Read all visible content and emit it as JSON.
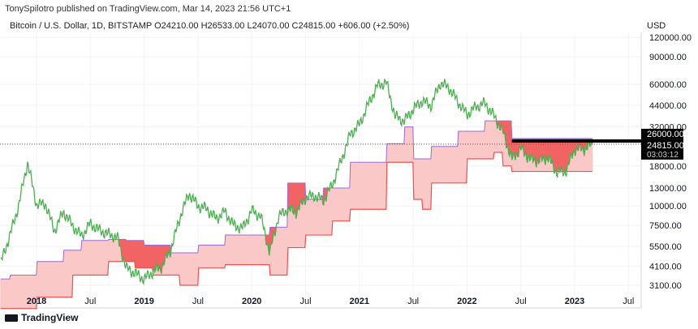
{
  "header": {
    "credit": "TonySpilotro published on TradingView.com, Mar 14, 2023 21:56 UTC+1",
    "legend": "Bitcoin / U.S. Dollar, 1D, BITSTAMP  O24210.00  H26533.00  L24070.00  C24815.00  +606.00 (+2.50%)"
  },
  "footer": {
    "brand": "TradingView"
  },
  "colors": {
    "price": "#4caf50",
    "cloud_upper": "#9c6ad6",
    "cloud_lower": "#f05050",
    "cloud_fill": "#fbc8c8",
    "cloud_dark": "#f26464",
    "resistance": "#000000"
  },
  "chart_data": {
    "type": "line",
    "title": "",
    "yscale": "log",
    "currency": "USD",
    "ylim": [
      2600,
      150000
    ],
    "xlim": [
      "2017-09",
      "2023-09"
    ],
    "y_ticks": [
      "120000.00",
      "90000.00",
      "60000.00",
      "44000.00",
      "32000.00",
      "18000.00",
      "13000.00",
      "10000.00",
      "7500.00",
      "5500.00",
      "4100.00",
      "3100.00"
    ],
    "x_ticks": [
      {
        "label": "2018",
        "date": "2018-01"
      },
      {
        "label": "Jul",
        "date": "2018-07"
      },
      {
        "label": "2019",
        "date": "2019-01"
      },
      {
        "label": "Jul",
        "date": "2019-07"
      },
      {
        "label": "2020",
        "date": "2020-01"
      },
      {
        "label": "Jul",
        "date": "2020-07"
      },
      {
        "label": "2021",
        "date": "2021-01"
      },
      {
        "label": "Jul",
        "date": "2021-07"
      },
      {
        "label": "2022",
        "date": "2022-01"
      },
      {
        "label": "Jul",
        "date": "2022-07"
      },
      {
        "label": "2023",
        "date": "2023-01"
      },
      {
        "label": "Jul",
        "date": "2023-07"
      }
    ],
    "price_labels": {
      "resistance": "26000.00",
      "last": "24815.00",
      "countdown": "03:03:12"
    },
    "resistance_level": 26000,
    "last_price": 24815,
    "resistance_from": "2022-06",
    "close": [
      [
        "2017-09",
        4300
      ],
      [
        "2017-10",
        6400
      ],
      [
        "2017-11",
        10000
      ],
      [
        "2017-12",
        19000
      ],
      [
        "2018-01",
        10200
      ],
      [
        "2018-02",
        10300
      ],
      [
        "2018-03",
        6900
      ],
      [
        "2018-04",
        9200
      ],
      [
        "2018-05",
        7500
      ],
      [
        "2018-06",
        6400
      ],
      [
        "2018-07",
        7700
      ],
      [
        "2018-08",
        7000
      ],
      [
        "2018-09",
        6600
      ],
      [
        "2018-10",
        6300
      ],
      [
        "2018-11",
        4000
      ],
      [
        "2018-12",
        3700
      ],
      [
        "2019-01",
        3400
      ],
      [
        "2019-02",
        3800
      ],
      [
        "2019-03",
        4100
      ],
      [
        "2019-04",
        5300
      ],
      [
        "2019-05",
        8500
      ],
      [
        "2019-06",
        12000
      ],
      [
        "2019-07",
        10000
      ],
      [
        "2019-08",
        9600
      ],
      [
        "2019-09",
        8300
      ],
      [
        "2019-10",
        9200
      ],
      [
        "2019-11",
        7500
      ],
      [
        "2019-12",
        7200
      ],
      [
        "2020-01",
        9350
      ],
      [
        "2020-02",
        8600
      ],
      [
        "2020-03",
        5000
      ],
      [
        "2020-04",
        8600
      ],
      [
        "2020-05",
        9450
      ],
      [
        "2020-06",
        9150
      ],
      [
        "2020-07",
        11300
      ],
      [
        "2020-08",
        11650
      ],
      [
        "2020-09",
        10800
      ],
      [
        "2020-10",
        13800
      ],
      [
        "2020-11",
        19700
      ],
      [
        "2020-12",
        29000
      ],
      [
        "2021-01",
        33100
      ],
      [
        "2021-02",
        45000
      ],
      [
        "2021-03",
        58800
      ],
      [
        "2021-04",
        62000
      ],
      [
        "2021-05",
        37300
      ],
      [
        "2021-06",
        35000
      ],
      [
        "2021-07",
        41500
      ],
      [
        "2021-08",
        47100
      ],
      [
        "2021-09",
        43800
      ],
      [
        "2021-10",
        61300
      ],
      [
        "2021-11",
        57000
      ],
      [
        "2021-12",
        46300
      ],
      [
        "2022-01",
        38500
      ],
      [
        "2022-02",
        43200
      ],
      [
        "2022-03",
        45500
      ],
      [
        "2022-04",
        37700
      ],
      [
        "2022-05",
        29800
      ],
      [
        "2022-06",
        19900
      ],
      [
        "2022-07",
        23300
      ],
      [
        "2022-08",
        20000
      ],
      [
        "2022-09",
        19400
      ],
      [
        "2022-10",
        20500
      ],
      [
        "2022-11",
        16500
      ],
      [
        "2022-12",
        16600
      ],
      [
        "2023-01",
        23100
      ],
      [
        "2023-02",
        23100
      ],
      [
        "2023-03",
        24815
      ]
    ],
    "cloud_upper": [
      [
        "2017-09",
        3400
      ],
      [
        "2017-10",
        3600
      ],
      [
        "2018-01",
        4400
      ],
      [
        "2018-04",
        5200
      ],
      [
        "2018-06",
        6000
      ],
      [
        "2018-09",
        6100
      ],
      [
        "2018-11",
        6000
      ],
      [
        "2019-01",
        5600
      ],
      [
        "2019-04",
        5000
      ],
      [
        "2019-07",
        5600
      ],
      [
        "2019-10",
        6500
      ],
      [
        "2020-01",
        6500
      ],
      [
        "2020-03",
        7300
      ],
      [
        "2020-05",
        14000
      ],
      [
        "2020-07",
        11000
      ],
      [
        "2020-09",
        13000
      ],
      [
        "2020-12",
        19000
      ],
      [
        "2021-04",
        25000
      ],
      [
        "2021-06",
        32000
      ],
      [
        "2021-07",
        20000
      ],
      [
        "2021-09",
        24000
      ],
      [
        "2021-12",
        30000
      ],
      [
        "2022-03",
        35000
      ],
      [
        "2022-05",
        35000
      ],
      [
        "2022-06",
        27000
      ],
      [
        "2023-03",
        27000
      ]
    ],
    "cloud_lower": [
      [
        "2017-09",
        2200
      ],
      [
        "2018-01",
        2600
      ],
      [
        "2018-05",
        3600
      ],
      [
        "2018-09",
        4400
      ],
      [
        "2018-12",
        4000
      ],
      [
        "2019-02",
        3600
      ],
      [
        "2019-05",
        3100
      ],
      [
        "2019-07",
        4000
      ],
      [
        "2019-10",
        4200
      ],
      [
        "2020-03",
        3600
      ],
      [
        "2020-05",
        5400
      ],
      [
        "2020-07",
        6500
      ],
      [
        "2020-10",
        8000
      ],
      [
        "2020-12",
        9500
      ],
      [
        "2021-04",
        19000
      ],
      [
        "2021-07",
        11000
      ],
      [
        "2021-08",
        9500
      ],
      [
        "2021-09",
        14000
      ],
      [
        "2022-01",
        20000
      ],
      [
        "2022-04",
        22000
      ],
      [
        "2022-05",
        18000
      ],
      [
        "2022-06",
        16600
      ],
      [
        "2023-03",
        16600
      ]
    ]
  }
}
